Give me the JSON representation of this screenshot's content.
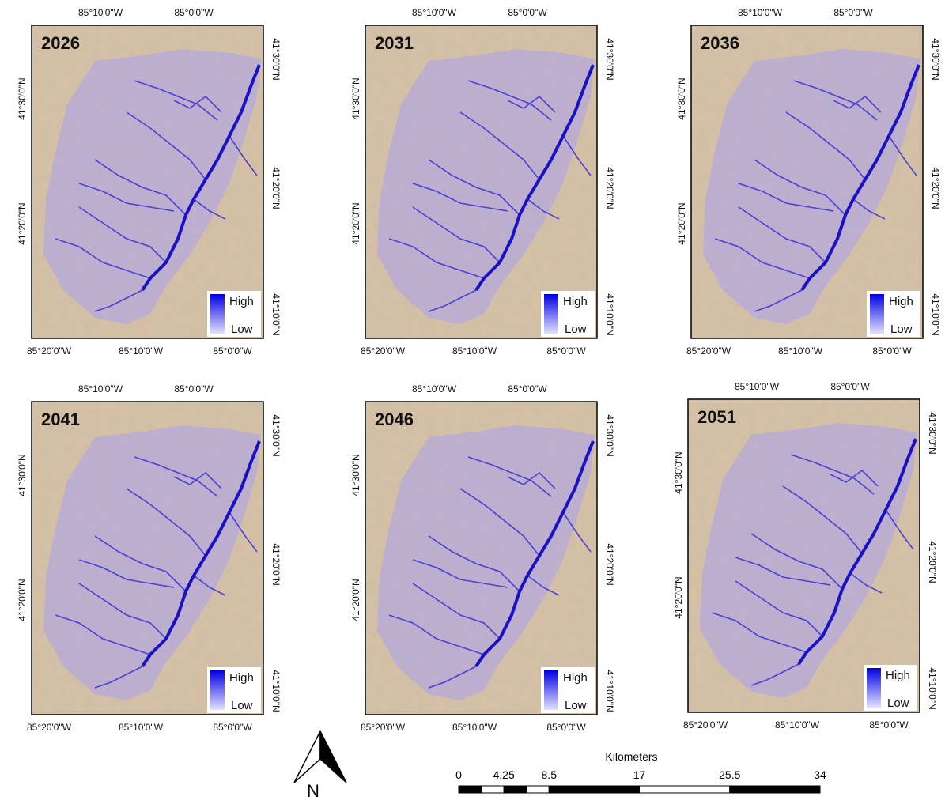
{
  "panels": [
    {
      "year": "2026",
      "top_labels": [
        "85°10'0\"W",
        "85°0'0\"W"
      ],
      "bottom_labels": [
        "85°20'0\"W",
        "85°10'0\"W",
        "85°0'0\"W"
      ],
      "left_labels": [
        "41°30'0\"N",
        "41°20'0\"N"
      ],
      "right_labels": [
        "41°30'0\"N",
        "41°20'0\"N",
        "41°10'0\"N"
      ],
      "legend": {
        "high": "High",
        "low": "Low"
      }
    },
    {
      "year": "2031",
      "top_labels": [
        "85°10'0\"W",
        "85°0'0\"W"
      ],
      "bottom_labels": [
        "85°20'0\"W",
        "85°10'0\"W",
        "85°0'0\"W"
      ],
      "left_labels": [
        "41°30'0\"N",
        "41°20'0\"N"
      ],
      "right_labels": [
        "41°30'0\"N",
        "41°20'0\"N",
        "41°10'0\"N"
      ],
      "legend": {
        "high": "High",
        "low": "Low"
      }
    },
    {
      "year": "2036",
      "top_labels": [
        "85°10'0\"W",
        "85°0'0\"W"
      ],
      "bottom_labels": [
        "85°20'0\"W",
        "85°10'0\"W",
        "85°0'0\"W"
      ],
      "left_labels": [
        "41°30'0\"N",
        "41°20'0\"N"
      ],
      "right_labels": [
        "41°30'0\"N",
        "41°20'0\"N",
        "41°10'0\"N"
      ],
      "legend": {
        "high": "High",
        "low": "Low"
      }
    },
    {
      "year": "2041",
      "top_labels": [
        "85°10'0\"W",
        "85°0'0\"W"
      ],
      "bottom_labels": [
        "85°20'0\"W",
        "85°10'0\"W",
        "85°0'0\"W"
      ],
      "left_labels": [
        "41°30'0\"N",
        "41°20'0\"N"
      ],
      "right_labels": [
        "41°30'0\"N",
        "41°20'0\"N",
        "41°10'0\"N"
      ],
      "legend": {
        "high": "High",
        "low": "Low"
      }
    },
    {
      "year": "2046",
      "top_labels": [
        "85°10'0\"W",
        "85°0'0\"W"
      ],
      "bottom_labels": [
        "85°20'0\"W",
        "85°10'0\"W",
        "85°0'0\"W"
      ],
      "left_labels": [
        "41°30'0\"N",
        "41°20'0\"N"
      ],
      "right_labels": [
        "41°30'0\"N",
        "41°20'0\"N",
        "41°10'0\"N"
      ],
      "legend": {
        "high": "High",
        "low": "Low"
      }
    },
    {
      "year": "2051",
      "top_labels": [
        "85°10'0\"W",
        "85°0'0\"W"
      ],
      "bottom_labels": [
        "85°20'0\"W",
        "85°10'0\"W",
        "85°0'0\"W"
      ],
      "left_labels": [
        "41°30'0\"N",
        "41°20'0\"N"
      ],
      "right_labels": [
        "41°30'0\"N",
        "41°20'0\"N",
        "41°10'0\"N"
      ],
      "legend": {
        "high": "High",
        "low": "Low"
      }
    }
  ],
  "north_arrow": {
    "label": "N"
  },
  "scale_bar": {
    "title": "Kilometers",
    "ticks": [
      0,
      4.25,
      8.5,
      17,
      25.5,
      34
    ]
  }
}
